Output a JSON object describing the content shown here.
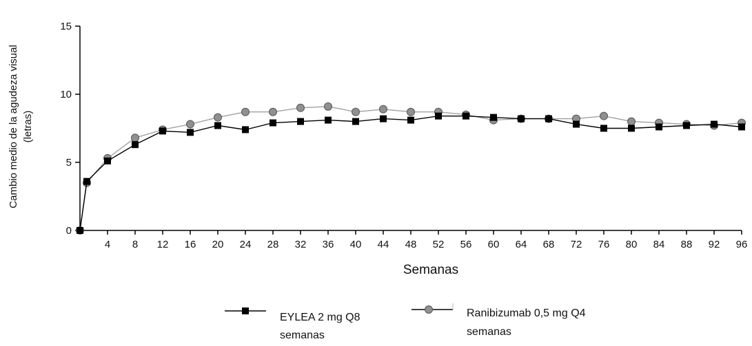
{
  "chart_data": {
    "type": "line",
    "xlabel": "Semanas",
    "ylabel": [
      "Cambio medio de la agudeza visual",
      "(letras)"
    ],
    "xlim": [
      0,
      96
    ],
    "ylim": [
      0,
      15
    ],
    "x_ticks": [
      4,
      8,
      12,
      16,
      20,
      24,
      28,
      32,
      36,
      40,
      44,
      48,
      52,
      56,
      60,
      64,
      68,
      72,
      76,
      80,
      84,
      88,
      92,
      96
    ],
    "y_ticks": [
      0,
      5,
      10,
      15
    ],
    "grid": false,
    "legend_position": "bottom",
    "x": [
      0,
      1,
      4,
      8,
      12,
      16,
      20,
      24,
      28,
      32,
      36,
      40,
      44,
      48,
      52,
      56,
      60,
      64,
      68,
      72,
      76,
      80,
      84,
      88,
      92,
      96
    ],
    "series": [
      {
        "name": "EYLEA 2 mg Q8 semanas",
        "legend_lines": [
          "EYLEA 2 mg Q8",
          "semanas"
        ],
        "marker": "square",
        "color": "#000000",
        "line_color": "#000000",
        "values": [
          0,
          3.6,
          5.1,
          6.3,
          7.3,
          7.2,
          7.7,
          7.4,
          7.9,
          8.0,
          8.1,
          8.0,
          8.2,
          8.1,
          8.4,
          8.4,
          8.3,
          8.2,
          8.2,
          7.8,
          7.5,
          7.5,
          7.6,
          7.7,
          7.8,
          7.6
        ]
      },
      {
        "name": "Ranibizumab 0,5 mg Q4 semanas",
        "legend_lines": [
          "Ranibizumab 0,5 mg Q4",
          "semanas"
        ],
        "marker": "circle",
        "color": "#909090",
        "line_color": "#a0a0a0",
        "values": [
          0,
          3.5,
          5.3,
          6.8,
          7.4,
          7.8,
          8.3,
          8.7,
          8.7,
          9.0,
          9.1,
          8.7,
          8.9,
          8.7,
          8.7,
          8.5,
          8.1,
          8.2,
          8.2,
          8.2,
          8.4,
          8.0,
          7.9,
          7.8,
          7.7,
          7.9
        ]
      }
    ]
  }
}
